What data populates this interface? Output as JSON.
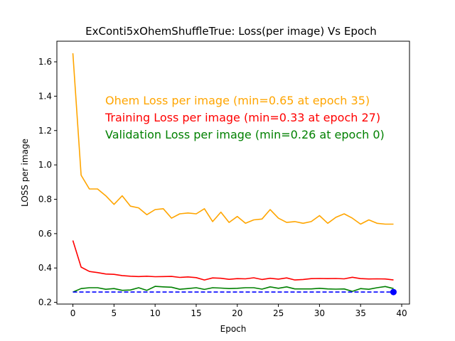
{
  "chart_data": {
    "type": "line",
    "title": "ExConti5xOhemShuffleTrue:  Loss(per image) Vs Epoch",
    "xlabel": "Epoch",
    "ylabel": "LOSS per image",
    "xlim": [
      -1.95,
      40.95
    ],
    "ylim": [
      0.19,
      1.72
    ],
    "xticks": [
      "0",
      "5",
      "10",
      "15",
      "20",
      "25",
      "30",
      "35",
      "40"
    ],
    "yticks": [
      "0.2",
      "0.4",
      "0.6",
      "0.8",
      "1.0",
      "1.2",
      "1.4",
      "1.6"
    ],
    "grid": false,
    "annotations": [
      {
        "text": "Ohem Loss per image (min=0.65 at epoch 35)",
        "color": "#ffa500"
      },
      {
        "text": "Training Loss per image (min=0.33 at epoch 27)",
        "color": "#ff0000"
      },
      {
        "text": "Validation Loss per image (min=0.26 at epoch 0)",
        "color": "#008000"
      }
    ],
    "x": [
      0,
      1,
      2,
      3,
      4,
      5,
      6,
      7,
      8,
      9,
      10,
      11,
      12,
      13,
      14,
      15,
      16,
      17,
      18,
      19,
      20,
      21,
      22,
      23,
      24,
      25,
      26,
      27,
      28,
      29,
      30,
      31,
      32,
      33,
      34,
      35,
      36,
      37,
      38,
      39
    ],
    "series": [
      {
        "color": "#ffa500",
        "values": [
          1.65,
          0.94,
          0.86,
          0.86,
          0.82,
          0.77,
          0.82,
          0.76,
          0.75,
          0.71,
          0.74,
          0.745,
          0.69,
          0.715,
          0.72,
          0.715,
          0.745,
          0.67,
          0.725,
          0.665,
          0.7,
          0.66,
          0.68,
          0.685,
          0.74,
          0.69,
          0.665,
          0.67,
          0.66,
          0.67,
          0.705,
          0.66,
          0.695,
          0.715,
          0.69,
          0.655,
          0.68,
          0.66,
          0.655,
          0.655
        ]
      },
      {
        "color": "#ff0000",
        "values": [
          0.56,
          0.405,
          0.38,
          0.373,
          0.365,
          0.363,
          0.356,
          0.352,
          0.35,
          0.352,
          0.349,
          0.35,
          0.351,
          0.345,
          0.348,
          0.344,
          0.33,
          0.342,
          0.34,
          0.334,
          0.338,
          0.337,
          0.343,
          0.333,
          0.34,
          0.335,
          0.342,
          0.33,
          0.333,
          0.338,
          0.339,
          0.338,
          0.339,
          0.337,
          0.346,
          0.338,
          0.336,
          0.337,
          0.336,
          0.33
        ]
      },
      {
        "color": "#008000",
        "values": [
          0.26,
          0.28,
          0.285,
          0.285,
          0.276,
          0.28,
          0.27,
          0.272,
          0.285,
          0.27,
          0.293,
          0.29,
          0.288,
          0.276,
          0.28,
          0.285,
          0.275,
          0.285,
          0.283,
          0.28,
          0.282,
          0.285,
          0.285,
          0.277,
          0.29,
          0.282,
          0.29,
          0.278,
          0.278,
          0.278,
          0.282,
          0.278,
          0.277,
          0.278,
          0.264,
          0.28,
          0.276,
          0.285,
          0.292,
          0.28
        ]
      },
      {
        "color": "#0000ff",
        "style": "dashed",
        "values": [
          0.26,
          0.26,
          0.26,
          0.26,
          0.26,
          0.26,
          0.26,
          0.26,
          0.26,
          0.26,
          0.26,
          0.26,
          0.26,
          0.26,
          0.26,
          0.26,
          0.26,
          0.26,
          0.26,
          0.26,
          0.26,
          0.26,
          0.26,
          0.26,
          0.26,
          0.26,
          0.26,
          0.26,
          0.26,
          0.26,
          0.26,
          0.26,
          0.26,
          0.26,
          0.26,
          0.26,
          0.26,
          0.26,
          0.26,
          0.26
        ]
      }
    ],
    "marker": {
      "x": 39,
      "y": 0.26,
      "color": "#0000ff"
    }
  }
}
